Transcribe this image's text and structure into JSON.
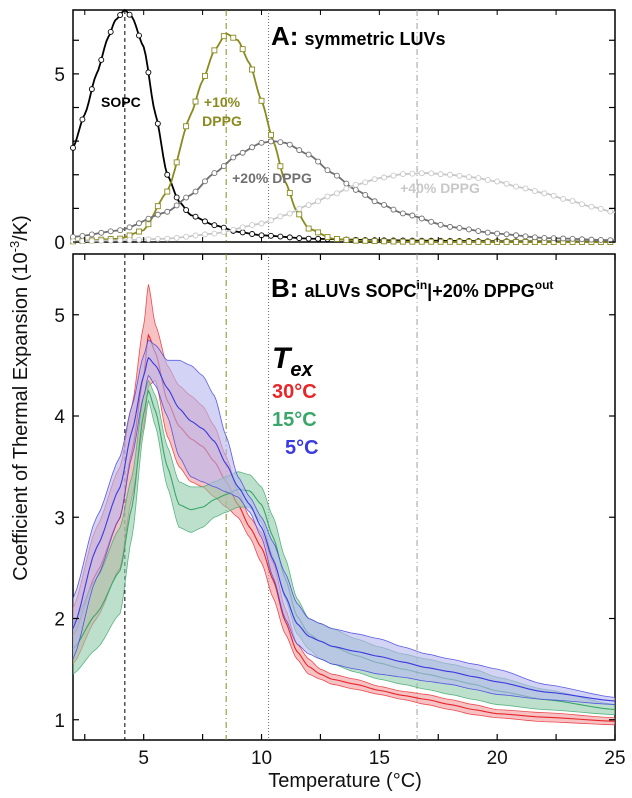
{
  "chart_data": [
    {
      "panel": "A",
      "type": "line",
      "title_letter": "A:",
      "title": "symmetric LUVs",
      "xlim": [
        2,
        25
      ],
      "ylim": [
        0,
        6.9
      ],
      "yticks": [
        0,
        5
      ],
      "grid": false,
      "series": [
        {
          "name": "SOPC",
          "color": "#000000",
          "marker": "circle",
          "x": [
            2,
            2.5,
            3,
            3.5,
            3.8,
            4.2,
            4.5,
            5,
            5.5,
            6,
            6.5,
            7,
            8,
            9,
            10,
            12,
            15,
            20,
            25
          ],
          "y": [
            2.8,
            3.8,
            5.0,
            6.1,
            6.6,
            6.9,
            6.7,
            5.8,
            3.8,
            2.0,
            1.2,
            0.8,
            0.5,
            0.3,
            0.2,
            0.1,
            0.05,
            0.02,
            0.01
          ]
        },
        {
          "name": "+10% DPPG",
          "label_lines": [
            "+10%",
            "DPPG"
          ],
          "color": "#8a8a1e",
          "marker": "square",
          "x": [
            2,
            4,
            5,
            6,
            7,
            7.5,
            8,
            8.5,
            9,
            9.5,
            10,
            10.5,
            11,
            11.5,
            12,
            13,
            14,
            16,
            20,
            25
          ],
          "y": [
            0.02,
            0.1,
            0.35,
            1.5,
            3.8,
            4.8,
            5.7,
            6.2,
            6.0,
            5.3,
            4.2,
            3.0,
            1.8,
            0.9,
            0.4,
            0.1,
            0.04,
            0.01,
            0.0,
            0.0
          ]
        },
        {
          "name": "+20% DPPG",
          "color": "#707070",
          "marker": "circle",
          "x": [
            2,
            4,
            6,
            7,
            8,
            9,
            10,
            10.5,
            11,
            12,
            13,
            14,
            15,
            16,
            18,
            20,
            22,
            25
          ],
          "y": [
            0.15,
            0.35,
            0.9,
            1.4,
            2.05,
            2.6,
            2.95,
            3.0,
            2.95,
            2.6,
            2.05,
            1.55,
            1.15,
            0.85,
            0.45,
            0.25,
            0.12,
            0.05
          ]
        },
        {
          "name": "+40% DPPG",
          "color": "#c8c8c8",
          "marker": "circle",
          "x": [
            2,
            4,
            6,
            8,
            10,
            11,
            12,
            13,
            14,
            15,
            16,
            17,
            18,
            19,
            20,
            21,
            22,
            23,
            24,
            25
          ],
          "y": [
            0.02,
            0.05,
            0.1,
            0.25,
            0.55,
            0.8,
            1.1,
            1.4,
            1.7,
            1.9,
            2.02,
            2.05,
            2.0,
            1.92,
            1.8,
            1.62,
            1.45,
            1.25,
            1.05,
            0.88
          ]
        }
      ]
    },
    {
      "panel": "B",
      "type": "area",
      "title_letter": "B:",
      "title_prefix": "aLUVs SOPC",
      "title_sup1": "in",
      "title_mid": "|+20% DPPG",
      "title_sup2": "out",
      "xlim": [
        2,
        25
      ],
      "ylim": [
        0.8,
        5.6
      ],
      "yticks": [
        1,
        2,
        3,
        4,
        5
      ],
      "xticks": [
        5,
        10,
        15,
        20,
        25
      ],
      "grid": false,
      "legend_title": "T",
      "legend_title_sub": "ex",
      "series": [
        {
          "name": "30°C",
          "color": "#e8262a",
          "fill": "#f19a9c",
          "x": [
            2,
            3,
            4,
            4.5,
            5,
            5.2,
            5.5,
            6,
            6.5,
            7,
            7.5,
            8,
            8.5,
            9,
            9.5,
            10,
            10.5,
            11,
            11.5,
            12,
            12.5,
            13,
            14,
            15,
            16,
            17,
            18,
            19,
            20,
            22,
            25
          ],
          "y_low": [
            1.55,
            2.0,
            2.5,
            3.2,
            3.9,
            4.3,
            4.35,
            3.8,
            3.5,
            3.35,
            3.3,
            3.2,
            3.1,
            3.0,
            2.8,
            2.55,
            2.2,
            1.85,
            1.6,
            1.45,
            1.4,
            1.35,
            1.3,
            1.25,
            1.2,
            1.15,
            1.1,
            1.05,
            1.02,
            0.98,
            0.95
          ],
          "y_high": [
            2.1,
            2.9,
            3.5,
            4.1,
            4.9,
            5.3,
            4.9,
            4.5,
            4.3,
            4.2,
            4.1,
            3.9,
            3.6,
            3.25,
            3.0,
            2.85,
            2.55,
            2.1,
            1.75,
            1.6,
            1.5,
            1.45,
            1.4,
            1.33,
            1.28,
            1.25,
            1.2,
            1.15,
            1.1,
            1.07,
            1.02
          ]
        },
        {
          "name": "15°C",
          "color": "#3aa66a",
          "fill": "#8fccaa",
          "x": [
            2,
            3,
            4,
            4.5,
            5,
            5.2,
            5.5,
            6,
            6.5,
            7,
            7.5,
            8,
            8.5,
            9,
            9.5,
            10,
            10.5,
            11,
            11.5,
            12,
            12.5,
            13,
            14,
            15,
            16,
            17,
            18,
            19,
            20,
            22,
            25
          ],
          "y_low": [
            1.45,
            1.7,
            2.05,
            2.8,
            3.85,
            4.15,
            3.9,
            3.3,
            2.9,
            2.85,
            2.9,
            3.0,
            3.05,
            3.1,
            3.1,
            2.95,
            2.6,
            2.2,
            1.85,
            1.7,
            1.6,
            1.55,
            1.47,
            1.4,
            1.35,
            1.3,
            1.25,
            1.2,
            1.15,
            1.1,
            1.05
          ],
          "y_high": [
            1.95,
            2.4,
            2.9,
            3.4,
            4.2,
            4.35,
            4.2,
            3.7,
            3.35,
            3.3,
            3.3,
            3.35,
            3.4,
            3.45,
            3.42,
            3.3,
            3.0,
            2.6,
            2.2,
            2.0,
            1.95,
            1.9,
            1.8,
            1.72,
            1.65,
            1.6,
            1.55,
            1.5,
            1.42,
            1.3,
            1.15
          ]
        },
        {
          "name": "5°C",
          "color": "#3a3adf",
          "fill": "#b6b6f0",
          "x": [
            2,
            3,
            4,
            4.5,
            5,
            5.2,
            5.5,
            6,
            6.5,
            7,
            7.5,
            8,
            8.5,
            9,
            9.5,
            10,
            10.5,
            11,
            11.5,
            12,
            12.5,
            13,
            14,
            15,
            16,
            17,
            18,
            19,
            20,
            22,
            25
          ],
          "y_low": [
            1.6,
            2.4,
            3.0,
            3.6,
            4.2,
            4.4,
            4.3,
            4.0,
            3.6,
            3.4,
            3.35,
            3.3,
            3.25,
            3.2,
            3.05,
            2.8,
            2.4,
            2.0,
            1.75,
            1.65,
            1.6,
            1.55,
            1.5,
            1.45,
            1.42,
            1.38,
            1.35,
            1.3,
            1.25,
            1.2,
            1.15
          ],
          "y_high": [
            2.2,
            3.0,
            3.6,
            4.1,
            4.6,
            4.75,
            4.7,
            4.55,
            4.55,
            4.5,
            4.4,
            4.2,
            3.8,
            3.4,
            3.2,
            3.0,
            2.75,
            2.45,
            2.15,
            2.0,
            1.95,
            1.9,
            1.85,
            1.8,
            1.72,
            1.65,
            1.6,
            1.55,
            1.5,
            1.35,
            1.22
          ]
        }
      ]
    }
  ],
  "shared": {
    "xlabel": "Temperature (°C)",
    "ylabel_prefix": "Coefficient of Thermal Expansion (10",
    "ylabel_exp": "-3",
    "ylabel_suffix": "/K)",
    "vlines": [
      {
        "x": 4.2,
        "color": "#000000",
        "style": "dash"
      },
      {
        "x": 8.5,
        "color": "#8a8a1e",
        "style": "dashdot"
      },
      {
        "x": 10.3,
        "color": "#707070",
        "style": "dot"
      },
      {
        "x": 16.6,
        "color": "#a0a0a0",
        "style": "dashdot"
      }
    ]
  }
}
